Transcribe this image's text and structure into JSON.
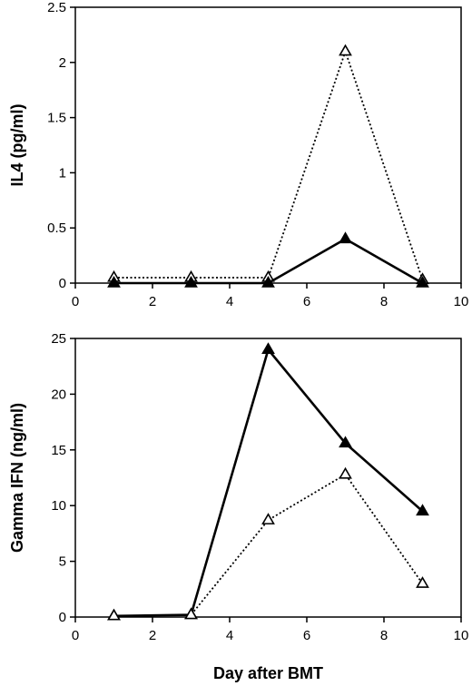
{
  "chart_data": [
    {
      "type": "line",
      "title": "",
      "xlabel": "",
      "ylabel": "IL4 (pg/ml)",
      "xlim": [
        0,
        10
      ],
      "ylim": [
        0,
        2.5
      ],
      "xticks": [
        "0",
        "2",
        "4",
        "6",
        "8",
        "10"
      ],
      "yticks": [
        "0",
        "0.5",
        "1",
        "1.5",
        "2",
        "2.5"
      ],
      "grid": false,
      "x": [
        1,
        3,
        5,
        7,
        9
      ],
      "series": [
        {
          "style": "dotted",
          "marker": "open-triangle",
          "color": "#000000",
          "values": [
            0.05,
            0.05,
            0.05,
            2.1,
            0.03
          ]
        },
        {
          "style": "solid",
          "marker": "filled-triangle",
          "color": "#000000",
          "values": [
            0,
            0,
            0,
            0.4,
            0
          ]
        }
      ]
    },
    {
      "type": "line",
      "title": "",
      "xlabel": "Day after BMT",
      "ylabel": "Gamma IFN (ng/ml)",
      "xlim": [
        0,
        10
      ],
      "ylim": [
        0,
        25
      ],
      "xticks": [
        "0",
        "2",
        "4",
        "6",
        "8",
        "10"
      ],
      "yticks": [
        "0",
        "5",
        "10",
        "15",
        "20",
        "25"
      ],
      "grid": false,
      "x": [
        1,
        3,
        5,
        7,
        9
      ],
      "series": [
        {
          "style": "solid",
          "marker": "filled-triangle",
          "color": "#000000",
          "values": [
            0.1,
            0.2,
            24,
            15.6,
            9.5
          ]
        },
        {
          "style": "dotted",
          "marker": "open-triangle",
          "color": "#000000",
          "values": [
            0.1,
            0.2,
            8.7,
            12.8,
            3
          ]
        }
      ]
    }
  ]
}
